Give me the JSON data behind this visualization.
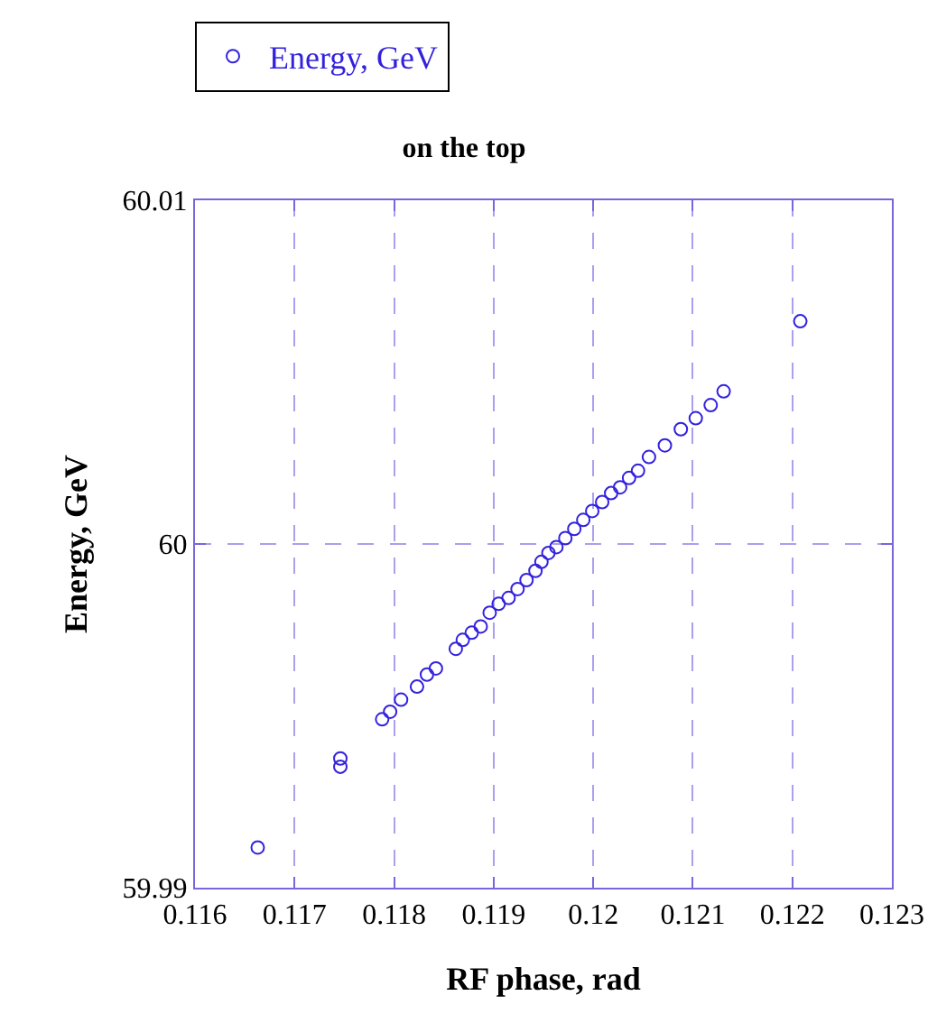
{
  "chart_data": {
    "type": "scatter",
    "title": "on the top",
    "xlabel": "RF phase, rad",
    "ylabel": "Energy, GeV",
    "x": [
      0.11663,
      0.11746,
      0.11746,
      0.11788,
      0.11796,
      0.11807,
      0.11823,
      0.11833,
      0.11842,
      0.11862,
      0.11869,
      0.11878,
      0.11887,
      0.11896,
      0.11905,
      0.11915,
      0.11924,
      0.11933,
      0.11942,
      0.11948,
      0.11955,
      0.11963,
      0.11972,
      0.11981,
      0.1199,
      0.11999,
      0.12009,
      0.12018,
      0.12027,
      0.12036,
      0.12045,
      0.12056,
      0.12072,
      0.12088,
      0.12103,
      0.12118,
      0.12131,
      0.12208
    ],
    "series": [
      {
        "name": "Energy, GeV",
        "color": "#3322dd",
        "values": [
          59.99117,
          59.99376,
          59.99352,
          59.9949,
          59.99512,
          59.99547,
          59.99585,
          59.9962,
          59.99638,
          59.99695,
          59.99721,
          59.99742,
          59.9976,
          59.998,
          59.99826,
          59.99843,
          59.99869,
          59.99895,
          59.99922,
          59.99948,
          59.99974,
          59.99991,
          60.00017,
          60.00044,
          60.0007,
          60.00096,
          60.00122,
          60.00148,
          60.00165,
          60.00192,
          60.00213,
          60.00253,
          60.00287,
          60.00334,
          60.00366,
          60.00404,
          60.00444,
          60.00648
        ]
      }
    ],
    "xlim": [
      0.116,
      0.123
    ],
    "xticks": [
      0.116,
      0.117,
      0.118,
      0.119,
      0.12,
      0.121,
      0.122,
      0.123
    ],
    "ylim": [
      59.99,
      60.01
    ],
    "yticks": [
      59.99,
      60,
      60.01
    ],
    "grid": true,
    "legend": "top left",
    "marker": "circle"
  }
}
